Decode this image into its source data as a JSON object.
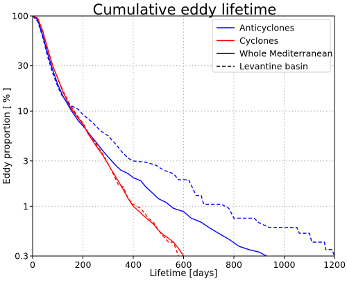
{
  "chart_data": {
    "type": "line",
    "title": "Cumulative eddy lifetime",
    "xlabel": "Lifetime [days]",
    "ylabel": "Eddy proportion [ % ]",
    "xlim": [
      0,
      1200
    ],
    "ylim": [
      0.3,
      100
    ],
    "yscale": "log",
    "grid": true,
    "legend_position": "top-right",
    "xticks": [
      0,
      200,
      400,
      600,
      800,
      1000,
      1200
    ],
    "yticks": [
      0.3,
      1,
      3,
      10,
      30,
      100
    ],
    "ytick_labels": [
      "0.3",
      "1",
      "3",
      "10",
      "30",
      "100"
    ],
    "legend": [
      {
        "label": "Anticyclones",
        "color": "#0000ff",
        "style": "solid"
      },
      {
        "label": "Cyclones",
        "color": "#ff0000",
        "style": "solid"
      },
      {
        "label": "Whole Mediterranean",
        "color": "#000000",
        "style": "solid"
      },
      {
        "label": "Levantine basin",
        "color": "#000000",
        "style": "dashed"
      }
    ],
    "series": [
      {
        "type": "Anticyclones",
        "region": "Whole Mediterranean",
        "color": "#0000ff",
        "dash": "solid",
        "points": [
          [
            0,
            100
          ],
          [
            20,
            92
          ],
          [
            40,
            62
          ],
          [
            60,
            40
          ],
          [
            80,
            27
          ],
          [
            100,
            19
          ],
          [
            120,
            14.5
          ],
          [
            150,
            10.5
          ],
          [
            180,
            8
          ],
          [
            200,
            7
          ],
          [
            220,
            6
          ],
          [
            250,
            4.8
          ],
          [
            280,
            3.8
          ],
          [
            300,
            3.3
          ],
          [
            330,
            2.7
          ],
          [
            350,
            2.4
          ],
          [
            380,
            2.2
          ],
          [
            400,
            2.0
          ],
          [
            430,
            1.85
          ],
          [
            450,
            1.6
          ],
          [
            480,
            1.35
          ],
          [
            500,
            1.2
          ],
          [
            530,
            1.1
          ],
          [
            560,
            0.95
          ],
          [
            600,
            0.88
          ],
          [
            630,
            0.75
          ],
          [
            670,
            0.68
          ],
          [
            700,
            0.6
          ],
          [
            750,
            0.5
          ],
          [
            780,
            0.45
          ],
          [
            820,
            0.38
          ],
          [
            860,
            0.35
          ],
          [
            900,
            0.33
          ],
          [
            930,
            0.3
          ]
        ]
      },
      {
        "type": "Cyclones",
        "region": "Whole Mediterranean",
        "color": "#ff0000",
        "dash": "solid",
        "points": [
          [
            0,
            100
          ],
          [
            20,
            95
          ],
          [
            40,
            70
          ],
          [
            60,
            45
          ],
          [
            80,
            30
          ],
          [
            100,
            22
          ],
          [
            120,
            16
          ],
          [
            150,
            11
          ],
          [
            180,
            8.5
          ],
          [
            200,
            7.3
          ],
          [
            220,
            5.8
          ],
          [
            250,
            4.4
          ],
          [
            280,
            3.4
          ],
          [
            310,
            2.5
          ],
          [
            340,
            1.85
          ],
          [
            360,
            1.5
          ],
          [
            380,
            1.2
          ],
          [
            400,
            1.0
          ],
          [
            420,
            0.9
          ],
          [
            440,
            0.8
          ],
          [
            460,
            0.72
          ],
          [
            480,
            0.65
          ],
          [
            500,
            0.56
          ],
          [
            520,
            0.5
          ],
          [
            540,
            0.46
          ],
          [
            560,
            0.42
          ],
          [
            580,
            0.36
          ],
          [
            600,
            0.3
          ]
        ]
      },
      {
        "type": "Anticyclones",
        "region": "Levantine basin",
        "color": "#0000ff",
        "dash": "dashed",
        "points": [
          [
            0,
            100
          ],
          [
            20,
            88
          ],
          [
            40,
            60
          ],
          [
            60,
            37
          ],
          [
            80,
            25
          ],
          [
            100,
            18
          ],
          [
            120,
            14
          ],
          [
            150,
            11.5
          ],
          [
            180,
            10.5
          ],
          [
            200,
            9.2
          ],
          [
            240,
            7.5
          ],
          [
            270,
            6.2
          ],
          [
            300,
            5.5
          ],
          [
            330,
            4.5
          ],
          [
            360,
            3.6
          ],
          [
            380,
            3.2
          ],
          [
            400,
            3.0
          ],
          [
            450,
            2.9
          ],
          [
            490,
            2.7
          ],
          [
            520,
            2.4
          ],
          [
            560,
            2.2
          ],
          [
            580,
            1.9
          ],
          [
            620,
            1.9
          ],
          [
            650,
            1.3
          ],
          [
            670,
            1.3
          ],
          [
            680,
            1.05
          ],
          [
            700,
            1.05
          ],
          [
            750,
            1.05
          ],
          [
            780,
            0.95
          ],
          [
            800,
            0.75
          ],
          [
            880,
            0.75
          ],
          [
            900,
            0.67
          ],
          [
            940,
            0.6
          ],
          [
            1050,
            0.6
          ],
          [
            1060,
            0.52
          ],
          [
            1100,
            0.52
          ],
          [
            1110,
            0.42
          ],
          [
            1160,
            0.42
          ],
          [
            1165,
            0.35
          ],
          [
            1190,
            0.35
          ],
          [
            1200,
            0.3
          ]
        ]
      },
      {
        "type": "Cyclones",
        "region": "Levantine basin",
        "color": "#ff0000",
        "dash": "dashed",
        "points": [
          [
            0,
            100
          ],
          [
            20,
            95
          ],
          [
            40,
            68
          ],
          [
            60,
            44
          ],
          [
            80,
            30
          ],
          [
            100,
            22
          ],
          [
            120,
            16.5
          ],
          [
            150,
            11.5
          ],
          [
            180,
            8.8
          ],
          [
            200,
            7.5
          ],
          [
            220,
            6
          ],
          [
            250,
            4.6
          ],
          [
            280,
            3.5
          ],
          [
            300,
            2.8
          ],
          [
            320,
            2.2
          ],
          [
            340,
            1.7
          ],
          [
            360,
            1.6
          ],
          [
            380,
            1.2
          ],
          [
            400,
            1.05
          ],
          [
            430,
            0.95
          ],
          [
            460,
            0.75
          ],
          [
            480,
            0.68
          ],
          [
            500,
            0.56
          ],
          [
            520,
            0.48
          ],
          [
            540,
            0.42
          ],
          [
            560,
            0.42
          ],
          [
            570,
            0.35
          ],
          [
            580,
            0.3
          ]
        ]
      }
    ]
  }
}
